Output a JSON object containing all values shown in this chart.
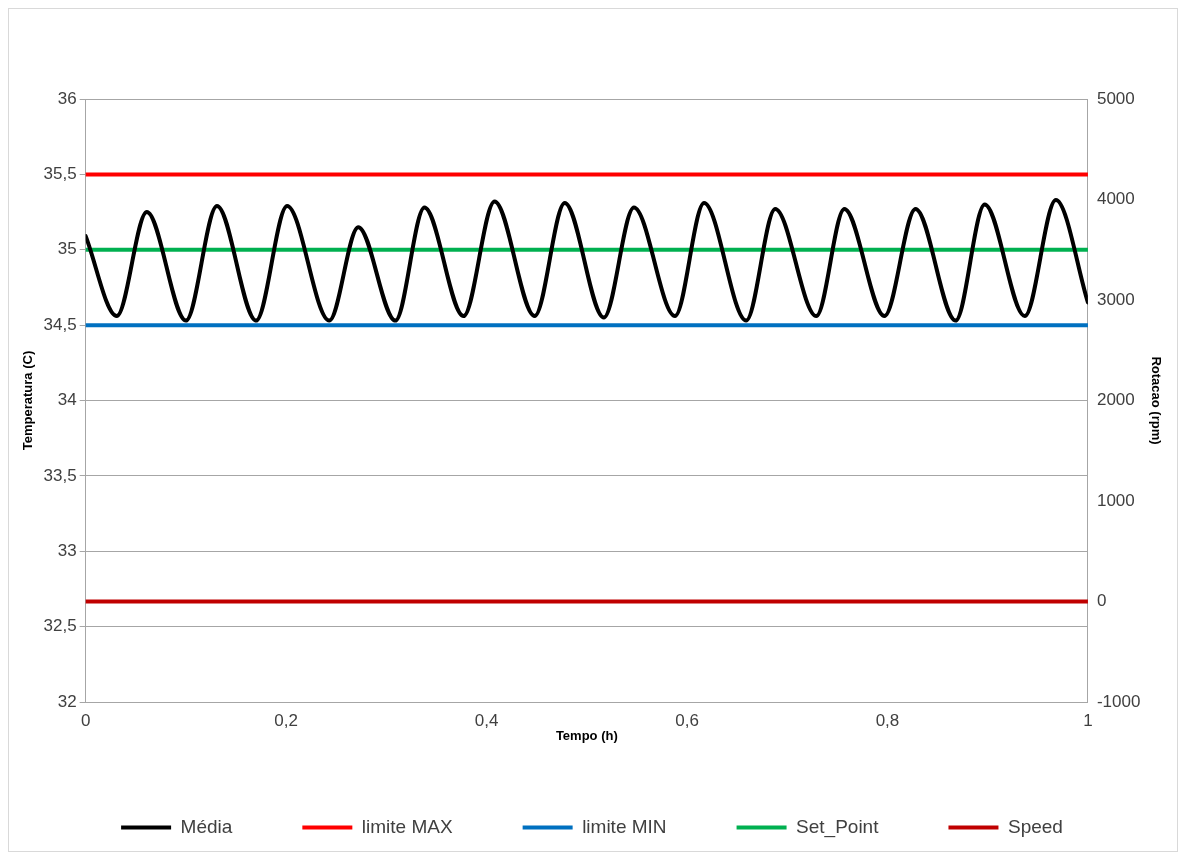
{
  "chart_data": {
    "type": "line",
    "xlabel": "Tempo (h)",
    "ylabel": "Temperatura (C)",
    "y2label": "Rotacao (rpm)",
    "xlim": [
      0,
      1
    ],
    "xticks": [
      0,
      {
        "value": 0.2,
        "label": "0,2"
      },
      {
        "value": 0.4,
        "label": "0,4"
      },
      {
        "value": 0.6,
        "label": "0,6"
      },
      {
        "value": 0.8,
        "label": "0,8"
      },
      1
    ],
    "ylim": [
      32,
      36
    ],
    "yticks": [
      32,
      {
        "value": 32.5,
        "label": "32,5"
      },
      33,
      {
        "value": 33.5,
        "label": "33,5"
      },
      34,
      {
        "value": 34.5,
        "label": "34,5"
      },
      35,
      {
        "value": 35.5,
        "label": "35,5"
      },
      36
    ],
    "y2lim": [
      -1000,
      5000
    ],
    "y2ticks": [
      -1000,
      0,
      1000,
      2000,
      3000,
      4000,
      5000
    ],
    "grid": "y",
    "legend": "bottom",
    "marker": "none",
    "line_style": "solid",
    "series": [
      {
        "name": "Média",
        "color": "#000000",
        "x": [
          0,
          0.031,
          0.061,
          0.1,
          0.131,
          0.17,
          0.201,
          0.243,
          0.272,
          0.309,
          0.338,
          0.377,
          0.408,
          0.448,
          0.478,
          0.517,
          0.547,
          0.588,
          0.617,
          0.659,
          0.688,
          0.729,
          0.757,
          0.797,
          0.828,
          0.868,
          0.897,
          0.937,
          0.968,
          1
        ],
        "values": [
          35.09,
          34.56,
          35.25,
          34.53,
          35.29,
          34.53,
          35.29,
          34.53,
          35.15,
          34.53,
          35.28,
          34.56,
          35.32,
          34.56,
          35.31,
          34.55,
          35.28,
          34.56,
          35.31,
          34.53,
          35.27,
          34.56,
          35.27,
          34.56,
          35.27,
          34.53,
          35.3,
          34.56,
          35.33,
          34.65
        ]
      },
      {
        "name": "limite MAX",
        "color": "#ff0000",
        "x": [
          0,
          1
        ],
        "values": [
          35.5,
          35.5
        ]
      },
      {
        "name": "limite MIN",
        "color": "#0070c0",
        "x": [
          0,
          1
        ],
        "values": [
          34.5,
          34.5
        ]
      },
      {
        "name": "Set_Point",
        "color": "#00b050",
        "x": [
          0,
          1
        ],
        "values": [
          35,
          35
        ]
      },
      {
        "name": "Speed",
        "color": "#c00000",
        "axis": "y2",
        "x": [
          0,
          1
        ],
        "values": [
          0,
          0
        ]
      }
    ]
  }
}
